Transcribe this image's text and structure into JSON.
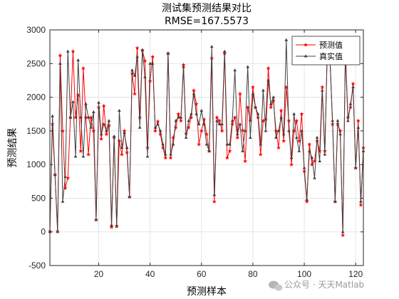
{
  "chart_data": {
    "type": "line",
    "title": "测试集预测结果对比",
    "subtitle": "RMSE=167.5573",
    "xlabel": "预测样本",
    "ylabel": "预测结果",
    "xlim": [
      1,
      123
    ],
    "ylim": [
      -500,
      3000
    ],
    "xticks": [
      20,
      40,
      60,
      80,
      100,
      120
    ],
    "yticks": [
      -500,
      0,
      500,
      1000,
      1500,
      2000,
      2500,
      3000
    ],
    "grid": true,
    "legend": "top-right",
    "series": [
      {
        "name": "预测值",
        "color": "#ff0000",
        "marker": "star",
        "values": [
          10,
          1600,
          850,
          10,
          2620,
          1500,
          650,
          800,
          1700,
          2680,
          1700,
          2030,
          1200,
          2430,
          1700,
          1150,
          1700,
          1500,
          180,
          1850,
          1380,
          1870,
          1450,
          1580,
          70,
          1400,
          90,
          1350,
          1150,
          1500,
          1180,
          520,
          2350,
          2050,
          2730,
          1700,
          2700,
          2540,
          1250,
          2240,
          2600,
          1500,
          1640,
          1450,
          1250,
          1100,
          2650,
          1100,
          1400,
          1550,
          1750,
          1650,
          2480,
          1460,
          1550,
          1700,
          2100,
          1900,
          1300,
          1500,
          1670,
          1450,
          1200,
          2580,
          450,
          1700,
          1650,
          1500,
          2650,
          1100,
          1200,
          1600,
          1700,
          1400,
          2050,
          1510,
          1050,
          1850,
          1650,
          2150,
          1850,
          1700,
          1150,
          1650,
          1670,
          2430,
          1850,
          1950,
          1500,
          1250,
          1800,
          1350,
          2150,
          1650,
          1000,
          1500,
          1650,
          1350,
          1750,
          900,
          450,
          1300,
          1000,
          1050,
          1350,
          1200,
          2150,
          1200,
          2750,
          2600,
          1600,
          450,
          1600,
          1500,
          -50,
          2700,
          1700,
          1850,
          2200,
          950,
          1650,
          400,
          1250
        ]
      },
      {
        "name": "真实值",
        "color": "#404040",
        "marker": "triangle",
        "values": [
          0,
          1720,
          850,
          0,
          2500,
          450,
          820,
          2680,
          1700,
          1930,
          1120,
          2550,
          1700,
          1120,
          1900,
          1700,
          1550,
          1780,
          180,
          1920,
          1450,
          1600,
          1500,
          1650,
          100,
          1420,
          80,
          1800,
          1250,
          1470,
          1250,
          520,
          2400,
          2320,
          2600,
          1550,
          2700,
          2300,
          1120,
          2500,
          2500,
          1550,
          1600,
          1500,
          1300,
          1150,
          2650,
          1150,
          1300,
          1650,
          1700,
          1700,
          2450,
          1400,
          1650,
          1750,
          2050,
          1750,
          1600,
          1800,
          1600,
          1300,
          1200,
          2750,
          550,
          1650,
          1600,
          1600,
          2680,
          1300,
          1300,
          1650,
          2400,
          1450,
          1600,
          1200,
          1500,
          2450,
          1400,
          2050,
          1850,
          1750,
          1300,
          2100,
          1500,
          2250,
          1900,
          2000,
          1400,
          1500,
          1700,
          1450,
          2850,
          1500,
          1100,
          1750,
          1400,
          1200,
          1500,
          950,
          480,
          1200,
          1100,
          800,
          1400,
          1050,
          2100,
          1150,
          2800,
          2550,
          1650,
          450,
          1650,
          1450,
          0,
          2650,
          1650,
          1900,
          2150,
          950,
          1550,
          450,
          1200
        ]
      }
    ]
  },
  "watermark": {
    "icon": "wechat-icon",
    "text": "公众号 · 天天Matlab"
  }
}
